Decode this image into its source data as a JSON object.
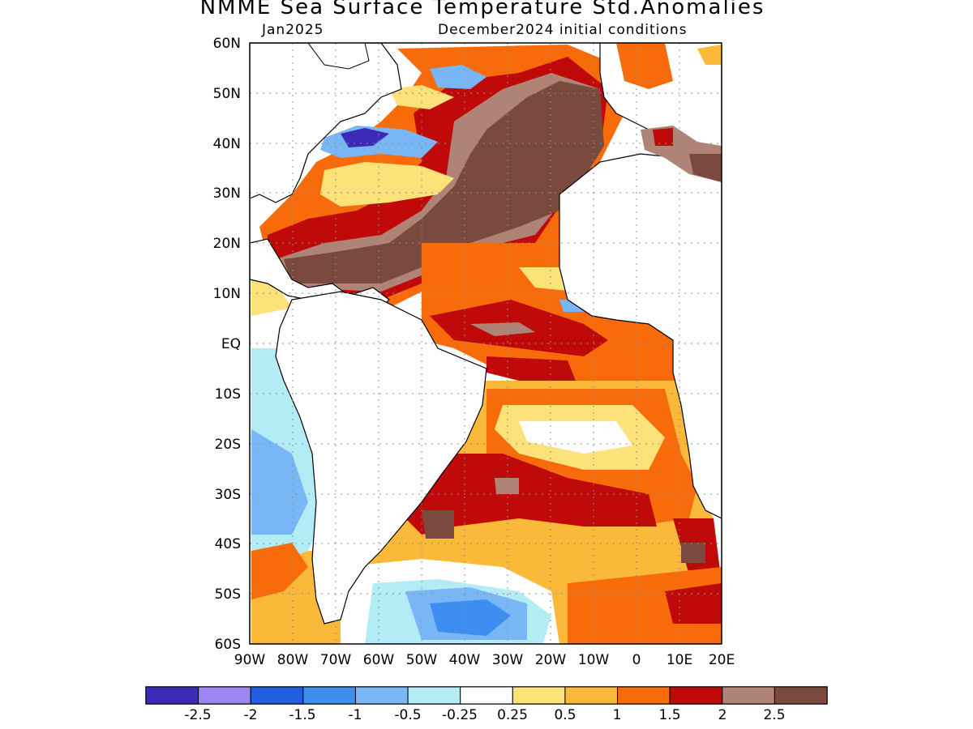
{
  "title": "NMME Sea Surface Temperature Std.Anomalies",
  "subtitle_left": "Jan2025",
  "subtitle_right": "December2024 initial conditions",
  "lat_labels": [
    "60N",
    "50N",
    "40N",
    "30N",
    "20N",
    "10N",
    "EQ",
    "10S",
    "20S",
    "30S",
    "40S",
    "50S",
    "60S"
  ],
  "lon_labels": [
    "90W",
    "80W",
    "70W",
    "60W",
    "50W",
    "40W",
    "30W",
    "20W",
    "10W",
    "0",
    "10E",
    "20E"
  ],
  "lat_range": [
    -60,
    60
  ],
  "lon_range": [
    -90,
    20
  ],
  "colorbar": {
    "colors": [
      "#3b2bb8",
      "#9c86f2",
      "#1f5fe0",
      "#3d8ef0",
      "#78b6f5",
      "#b4ecf6",
      "#ffffff",
      "#fde27a",
      "#fbb939",
      "#f86b0a",
      "#c00a0a",
      "#b08377",
      "#7a4a3e"
    ],
    "labels": [
      "-2.5",
      "-2",
      "-1.5",
      "-1",
      "-0.5",
      "-0.25",
      "0.25",
      "0.5",
      "1",
      "1.5",
      "2",
      "2.5"
    ]
  }
}
